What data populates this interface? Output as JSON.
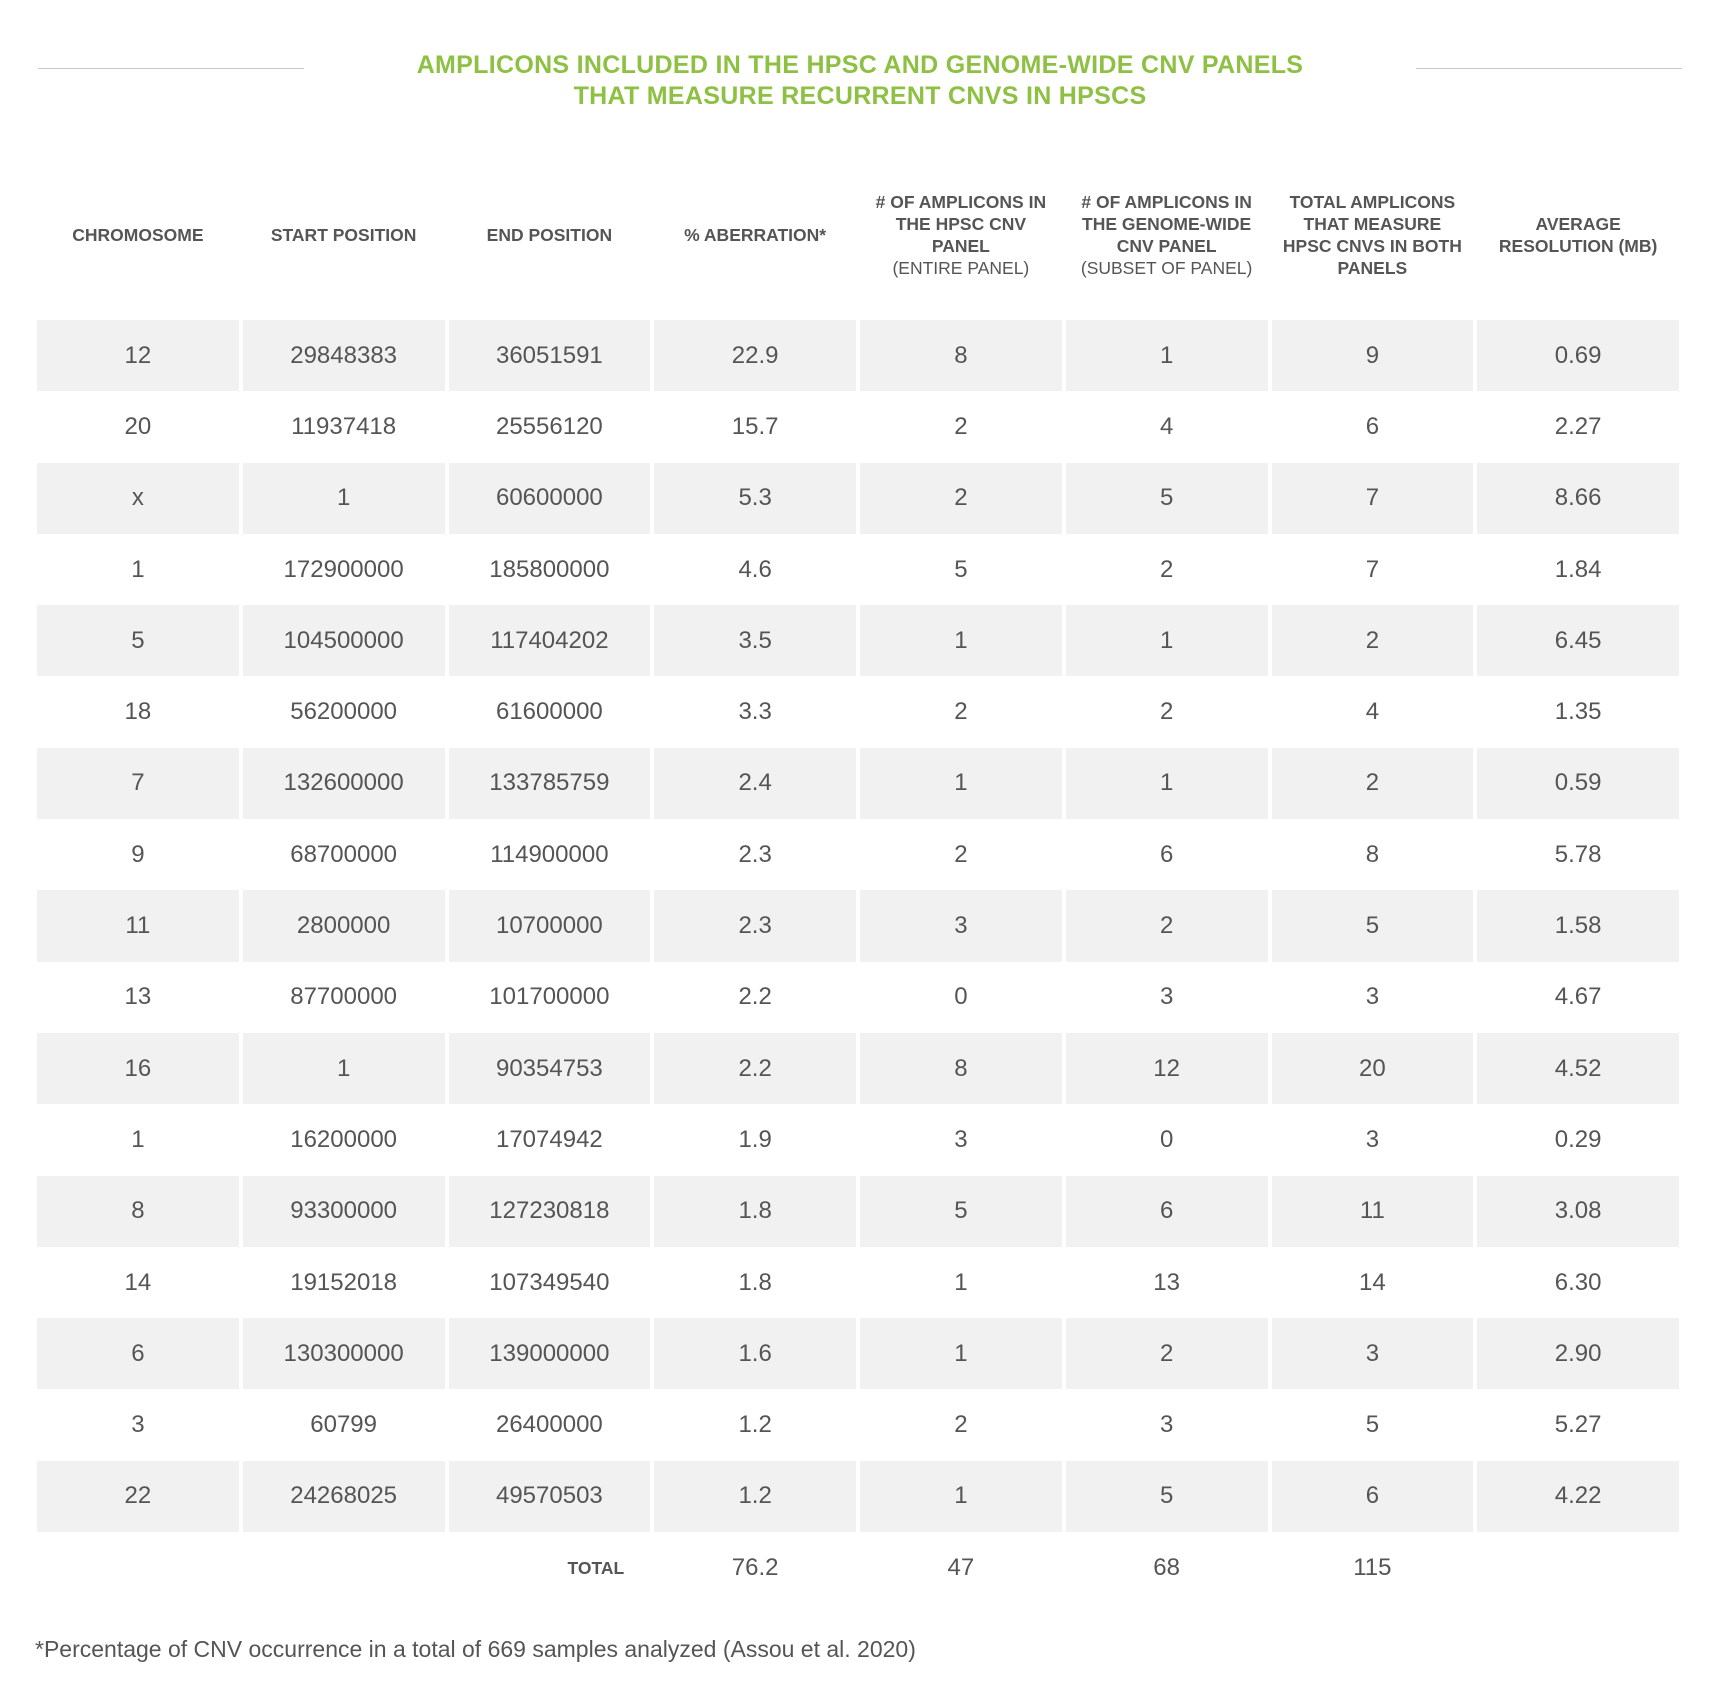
{
  "title": {
    "line1": "AMPLICONS INCLUDED IN THE HPSC AND GENOME-WIDE CNV PANELS",
    "line2": "THAT MEASURE RECURRENT CNVS IN HPSCS"
  },
  "headers": {
    "chromosome": "CHROMOSOME",
    "start": "START POSITION",
    "end": "END POSITION",
    "aberration": "% ABERRATION*",
    "hpsc_main": "# OF AMPLICONS IN THE HPSC CNV PANEL",
    "hpsc_sub": "(ENTIRE PANEL)",
    "gw_main": "# OF AMPLICONS IN THE GENOME-WIDE CNV PANEL",
    "gw_sub": "(SUBSET OF PANEL)",
    "total": "TOTAL AMPLICONS THAT MEASURE HPSC CNVS IN BOTH PANELS",
    "resolution": "AVERAGE RESOLUTION (MB)"
  },
  "rows": [
    [
      "12",
      "29848383",
      "36051591",
      "22.9",
      "8",
      "1",
      "9",
      "0.69"
    ],
    [
      "20",
      "11937418",
      "25556120",
      "15.7",
      "2",
      "4",
      "6",
      "2.27"
    ],
    [
      "x",
      "1",
      "60600000",
      "5.3",
      "2",
      "5",
      "7",
      "8.66"
    ],
    [
      "1",
      "172900000",
      "185800000",
      "4.6",
      "5",
      "2",
      "7",
      "1.84"
    ],
    [
      "5",
      "104500000",
      "117404202",
      "3.5",
      "1",
      "1",
      "2",
      "6.45"
    ],
    [
      "18",
      "56200000",
      "61600000",
      "3.3",
      "2",
      "2",
      "4",
      "1.35"
    ],
    [
      "7",
      "132600000",
      "133785759",
      "2.4",
      "1",
      "1",
      "2",
      "0.59"
    ],
    [
      "9",
      "68700000",
      "114900000",
      "2.3",
      "2",
      "6",
      "8",
      "5.78"
    ],
    [
      "11",
      "2800000",
      "10700000",
      "2.3",
      "3",
      "2",
      "5",
      "1.58"
    ],
    [
      "13",
      "87700000",
      "101700000",
      "2.2",
      "0",
      "3",
      "3",
      "4.67"
    ],
    [
      "16",
      "1",
      "90354753",
      "2.2",
      "8",
      "12",
      "20",
      "4.52"
    ],
    [
      "1",
      "16200000",
      "17074942",
      "1.9",
      "3",
      "0",
      "3",
      "0.29"
    ],
    [
      "8",
      "93300000",
      "127230818",
      "1.8",
      "5",
      "6",
      "11",
      "3.08"
    ],
    [
      "14",
      "19152018",
      "107349540",
      "1.8",
      "1",
      "13",
      "14",
      "6.30"
    ],
    [
      "6",
      "130300000",
      "139000000",
      "1.6",
      "1",
      "2",
      "3",
      "2.90"
    ],
    [
      "3",
      "60799",
      "26400000",
      "1.2",
      "2",
      "3",
      "5",
      "5.27"
    ],
    [
      "22",
      "24268025",
      "49570503",
      "1.2",
      "1",
      "5",
      "6",
      "4.22"
    ]
  ],
  "totals": {
    "label": "TOTAL",
    "aberration": "76.2",
    "hpsc": "47",
    "gw": "68",
    "total": "115"
  },
  "footnote": "*Percentage of CNV occurrence in a total of 669 samples analyzed (Assou et al. 2020)"
}
